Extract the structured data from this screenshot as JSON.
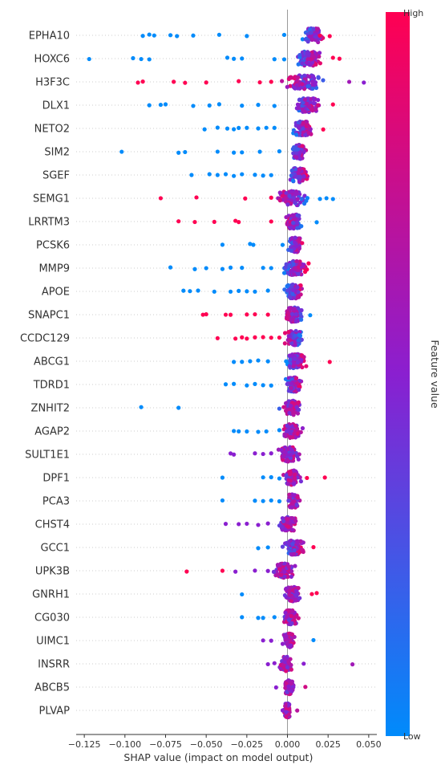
{
  "chart_data": {
    "type": "scatter",
    "subtype": "shap-beeswarm",
    "xlabel": "SHAP value (impact on model output)",
    "xlim": [
      -0.13,
      0.055
    ],
    "xticks": [
      -0.125,
      -0.1,
      -0.075,
      -0.05,
      -0.025,
      0.0,
      0.025,
      0.05
    ],
    "xtick_labels": [
      "−0.125",
      "−0.100",
      "−0.075",
      "−0.050",
      "−0.025",
      "0.000",
      "0.025",
      "0.050"
    ],
    "colorbar": {
      "title": "Feature value",
      "high_label": "High",
      "low_label": "Low",
      "high_color": "#ff0052",
      "low_color": "#008bfb"
    },
    "features": [
      {
        "name": "EPHA10",
        "min": -0.089,
        "max": 0.026,
        "center": 0.016,
        "spread": 0.01,
        "peak": 0.0035,
        "corr": 1,
        "outliers": [
          [
            -0.089,
            0
          ],
          [
            -0.085,
            0
          ],
          [
            -0.082,
            0
          ],
          [
            -0.072,
            0
          ],
          [
            -0.068,
            0
          ],
          [
            -0.058,
            0
          ],
          [
            -0.042,
            0
          ],
          [
            -0.025,
            0
          ],
          [
            -0.002,
            0
          ],
          [
            0.026,
            1
          ],
          [
            0.02,
            1
          ]
        ]
      },
      {
        "name": "HOXC6",
        "min": -0.122,
        "max": 0.032,
        "center": 0.013,
        "spread": 0.011,
        "peak": 0.0035,
        "corr": 1,
        "outliers": [
          [
            -0.122,
            0
          ],
          [
            -0.095,
            0
          ],
          [
            -0.09,
            0
          ],
          [
            -0.085,
            0
          ],
          [
            -0.037,
            0
          ],
          [
            -0.033,
            0
          ],
          [
            -0.028,
            0
          ],
          [
            -0.008,
            0
          ],
          [
            -0.002,
            0
          ],
          [
            0.032,
            1
          ],
          [
            0.028,
            1
          ]
        ]
      },
      {
        "name": "H3F3C",
        "min": -0.092,
        "max": 0.047,
        "center": 0.01,
        "spread": 0.016,
        "peak": 0.004,
        "corr": 0,
        "outliers": [
          [
            -0.092,
            1
          ],
          [
            -0.089,
            1
          ],
          [
            -0.07,
            1
          ],
          [
            -0.063,
            1
          ],
          [
            -0.05,
            1
          ],
          [
            -0.03,
            1
          ],
          [
            -0.017,
            1
          ],
          [
            -0.01,
            1
          ],
          [
            0.038,
            0.6
          ],
          [
            0.047,
            0.5
          ]
        ]
      },
      {
        "name": "DLX1",
        "min": -0.085,
        "max": 0.028,
        "center": 0.012,
        "spread": 0.011,
        "peak": 0.0035,
        "corr": 1,
        "outliers": [
          [
            -0.085,
            0
          ],
          [
            -0.078,
            0
          ],
          [
            -0.075,
            0
          ],
          [
            -0.058,
            0
          ],
          [
            -0.048,
            0
          ],
          [
            -0.042,
            0
          ],
          [
            -0.028,
            0
          ],
          [
            -0.018,
            0
          ],
          [
            -0.008,
            0
          ],
          [
            0.028,
            1
          ]
        ]
      },
      {
        "name": "NETO2",
        "min": -0.051,
        "max": 0.022,
        "center": 0.009,
        "spread": 0.009,
        "peak": 0.003,
        "corr": 1,
        "outliers": [
          [
            -0.051,
            0
          ],
          [
            -0.043,
            0
          ],
          [
            -0.037,
            0
          ],
          [
            -0.033,
            0
          ],
          [
            -0.03,
            0
          ],
          [
            -0.025,
            0
          ],
          [
            -0.018,
            0
          ],
          [
            -0.013,
            0
          ],
          [
            -0.008,
            0
          ],
          [
            0.022,
            1
          ]
        ]
      },
      {
        "name": "SIM2",
        "min": -0.102,
        "max": 0.014,
        "center": 0.007,
        "spread": 0.006,
        "peak": 0.0025,
        "corr": 1,
        "outliers": [
          [
            -0.102,
            0
          ],
          [
            -0.067,
            0
          ],
          [
            -0.063,
            0
          ],
          [
            -0.043,
            0
          ],
          [
            -0.033,
            0
          ],
          [
            -0.028,
            0
          ],
          [
            -0.017,
            0
          ],
          [
            -0.005,
            0
          ]
        ]
      },
      {
        "name": "SGEF",
        "min": -0.059,
        "max": 0.017,
        "center": 0.007,
        "spread": 0.008,
        "peak": 0.003,
        "corr": 1,
        "outliers": [
          [
            -0.059,
            0
          ],
          [
            -0.048,
            0
          ],
          [
            -0.043,
            0
          ],
          [
            -0.038,
            0
          ],
          [
            -0.033,
            0
          ],
          [
            -0.028,
            0
          ],
          [
            -0.02,
            0
          ],
          [
            -0.015,
            0
          ],
          [
            -0.01,
            0
          ]
        ]
      },
      {
        "name": "SEMG1",
        "min": -0.078,
        "max": 0.028,
        "center": 0.003,
        "spread": 0.013,
        "peak": 0.0035,
        "corr": 0,
        "outliers": [
          [
            -0.078,
            1
          ],
          [
            -0.056,
            1
          ],
          [
            -0.026,
            1
          ],
          [
            -0.01,
            1
          ],
          [
            0.02,
            0
          ],
          [
            0.024,
            0
          ],
          [
            0.028,
            0
          ]
        ]
      },
      {
        "name": "LRRTM3",
        "min": -0.067,
        "max": 0.018,
        "center": 0.004,
        "spread": 0.008,
        "peak": 0.003,
        "corr": 0,
        "outliers": [
          [
            -0.067,
            1
          ],
          [
            -0.057,
            1
          ],
          [
            -0.045,
            1
          ],
          [
            -0.032,
            1
          ],
          [
            -0.03,
            1
          ],
          [
            -0.01,
            1
          ],
          [
            0.018,
            0
          ]
        ]
      },
      {
        "name": "PCSK6",
        "min": -0.04,
        "max": 0.014,
        "center": 0.005,
        "spread": 0.006,
        "peak": 0.0025,
        "corr": 1,
        "outliers": [
          [
            -0.04,
            0
          ],
          [
            -0.023,
            0
          ],
          [
            -0.021,
            0
          ],
          [
            -0.003,
            0
          ]
        ]
      },
      {
        "name": "MMP9",
        "min": -0.072,
        "max": 0.019,
        "center": 0.005,
        "spread": 0.01,
        "peak": 0.0032,
        "corr": 1,
        "outliers": [
          [
            -0.072,
            0
          ],
          [
            -0.057,
            0
          ],
          [
            -0.05,
            0
          ],
          [
            -0.04,
            0
          ],
          [
            -0.035,
            0
          ],
          [
            -0.028,
            0
          ],
          [
            -0.015,
            0
          ],
          [
            -0.01,
            0
          ]
        ]
      },
      {
        "name": "APOE",
        "min": -0.064,
        "max": 0.014,
        "center": 0.004,
        "spread": 0.008,
        "peak": 0.0028,
        "corr": 1,
        "outliers": [
          [
            -0.064,
            0
          ],
          [
            -0.06,
            0
          ],
          [
            -0.055,
            0
          ],
          [
            -0.045,
            0
          ],
          [
            -0.035,
            0
          ],
          [
            -0.03,
            0
          ],
          [
            -0.025,
            0
          ],
          [
            -0.02,
            0
          ],
          [
            -0.012,
            0
          ]
        ]
      },
      {
        "name": "SNAPC1",
        "min": -0.052,
        "max": 0.014,
        "center": 0.004,
        "spread": 0.008,
        "peak": 0.0028,
        "corr": 0,
        "outliers": [
          [
            -0.052,
            1
          ],
          [
            -0.05,
            1
          ],
          [
            -0.038,
            1
          ],
          [
            -0.035,
            1
          ],
          [
            -0.025,
            1
          ],
          [
            -0.02,
            1
          ],
          [
            -0.012,
            1
          ],
          [
            0.014,
            0
          ]
        ]
      },
      {
        "name": "CCDC129",
        "min": -0.043,
        "max": 0.013,
        "center": 0.004,
        "spread": 0.008,
        "peak": 0.0028,
        "corr": 0,
        "outliers": [
          [
            -0.043,
            1
          ],
          [
            -0.032,
            1
          ],
          [
            -0.028,
            1
          ],
          [
            -0.025,
            1
          ],
          [
            -0.02,
            1
          ],
          [
            -0.015,
            1
          ],
          [
            -0.01,
            1
          ],
          [
            -0.005,
            1
          ]
        ]
      },
      {
        "name": "ABCG1",
        "min": -0.033,
        "max": 0.026,
        "center": 0.005,
        "spread": 0.008,
        "peak": 0.003,
        "corr": 1,
        "outliers": [
          [
            -0.033,
            0
          ],
          [
            -0.028,
            0
          ],
          [
            -0.023,
            0
          ],
          [
            -0.018,
            0
          ],
          [
            -0.012,
            0
          ],
          [
            0.026,
            1
          ]
        ]
      },
      {
        "name": "TDRD1",
        "min": -0.038,
        "max": 0.013,
        "center": 0.004,
        "spread": 0.007,
        "peak": 0.0028,
        "corr": 1,
        "outliers": [
          [
            -0.038,
            0
          ],
          [
            -0.033,
            0
          ],
          [
            -0.025,
            0
          ],
          [
            -0.02,
            0
          ],
          [
            -0.015,
            0
          ],
          [
            -0.01,
            0
          ]
        ]
      },
      {
        "name": "ZNHIT2",
        "min": -0.09,
        "max": 0.011,
        "center": 0.003,
        "spread": 0.007,
        "peak": 0.003,
        "corr": 0.5,
        "outliers": [
          [
            -0.09,
            0
          ],
          [
            -0.067,
            0
          ],
          [
            -0.005,
            0.2
          ]
        ]
      },
      {
        "name": "AGAP2",
        "min": -0.033,
        "max": 0.012,
        "center": 0.003,
        "spread": 0.008,
        "peak": 0.003,
        "corr": 0.5,
        "outliers": [
          [
            -0.033,
            0
          ],
          [
            -0.03,
            0
          ],
          [
            -0.025,
            0
          ],
          [
            -0.018,
            0
          ],
          [
            -0.013,
            0
          ],
          [
            -0.005,
            0
          ]
        ]
      },
      {
        "name": "SULT1E1",
        "min": -0.035,
        "max": 0.01,
        "center": 0.001,
        "spread": 0.009,
        "peak": 0.0028,
        "corr": 0.5,
        "outliers": [
          [
            -0.035,
            0.5
          ],
          [
            -0.033,
            0.5
          ],
          [
            -0.02,
            0.5
          ],
          [
            -0.015,
            0.5
          ],
          [
            -0.01,
            0.5
          ]
        ]
      },
      {
        "name": "DPF1",
        "min": -0.04,
        "max": 0.023,
        "center": 0.003,
        "spread": 0.007,
        "peak": 0.0032,
        "corr": 0.5,
        "outliers": [
          [
            -0.04,
            0
          ],
          [
            -0.015,
            0
          ],
          [
            -0.01,
            0
          ],
          [
            -0.005,
            0
          ],
          [
            0.012,
            1
          ],
          [
            0.023,
            1
          ]
        ]
      },
      {
        "name": "PCA3",
        "min": -0.04,
        "max": 0.01,
        "center": 0.004,
        "spread": 0.006,
        "peak": 0.003,
        "corr": 0.5,
        "outliers": [
          [
            -0.04,
            0
          ],
          [
            -0.02,
            0
          ],
          [
            -0.015,
            0
          ],
          [
            -0.01,
            0
          ],
          [
            -0.005,
            0
          ]
        ]
      },
      {
        "name": "CHST4",
        "min": -0.038,
        "max": 0.008,
        "center": 0.0,
        "spread": 0.008,
        "peak": 0.0026,
        "corr": 0.4,
        "outliers": [
          [
            -0.038,
            0.5
          ],
          [
            -0.03,
            0.5
          ],
          [
            -0.025,
            0.5
          ],
          [
            -0.018,
            0.5
          ],
          [
            -0.012,
            0.5
          ]
        ]
      },
      {
        "name": "GCC1",
        "min": -0.018,
        "max": 0.016,
        "center": 0.004,
        "spread": 0.008,
        "peak": 0.003,
        "corr": 1,
        "outliers": [
          [
            -0.018,
            0
          ],
          [
            -0.012,
            0
          ],
          [
            0.016,
            1
          ]
        ]
      },
      {
        "name": "UPK3B",
        "min": -0.062,
        "max": 0.006,
        "center": -0.002,
        "spread": 0.008,
        "peak": 0.0026,
        "corr": 0.4,
        "outliers": [
          [
            -0.062,
            1
          ],
          [
            -0.04,
            1
          ],
          [
            -0.032,
            0.5
          ],
          [
            -0.02,
            0.5
          ],
          [
            -0.012,
            0.5
          ]
        ]
      },
      {
        "name": "GNRH1",
        "min": -0.028,
        "max": 0.02,
        "center": 0.003,
        "spread": 0.007,
        "peak": 0.003,
        "corr": 0.6,
        "outliers": [
          [
            -0.028,
            0
          ],
          [
            0.015,
            1
          ],
          [
            0.018,
            1
          ]
        ]
      },
      {
        "name": "CG030",
        "min": -0.028,
        "max": 0.01,
        "center": 0.002,
        "spread": 0.006,
        "peak": 0.0028,
        "corr": 0.5,
        "outliers": [
          [
            -0.028,
            0
          ],
          [
            -0.018,
            0
          ],
          [
            -0.015,
            0
          ],
          [
            -0.008,
            0
          ]
        ]
      },
      {
        "name": "UIMC1",
        "min": -0.015,
        "max": 0.016,
        "center": 0.001,
        "spread": 0.005,
        "peak": 0.0026,
        "corr": 0.5,
        "outliers": [
          [
            -0.015,
            0.5
          ],
          [
            -0.01,
            0.5
          ],
          [
            0.016,
            0
          ]
        ]
      },
      {
        "name": "INSRR",
        "min": -0.012,
        "max": 0.04,
        "center": -0.001,
        "spread": 0.006,
        "peak": 0.0026,
        "corr": 0.5,
        "outliers": [
          [
            -0.012,
            0.5
          ],
          [
            -0.008,
            0.5
          ],
          [
            0.01,
            0.5
          ],
          [
            0.04,
            0.6
          ]
        ]
      },
      {
        "name": "ABCB5",
        "min": -0.007,
        "max": 0.011,
        "center": 0.001,
        "spread": 0.004,
        "peak": 0.0024,
        "corr": 0.5,
        "outliers": [
          [
            -0.007,
            0.5
          ],
          [
            0.011,
            0.8
          ]
        ]
      },
      {
        "name": "PLVAP",
        "min": -0.004,
        "max": 0.006,
        "center": 0.0,
        "spread": 0.003,
        "peak": 0.0022,
        "corr": 0.5,
        "outliers": [
          [
            -0.003,
            0.5
          ],
          [
            0.006,
            0.7
          ]
        ]
      }
    ]
  }
}
